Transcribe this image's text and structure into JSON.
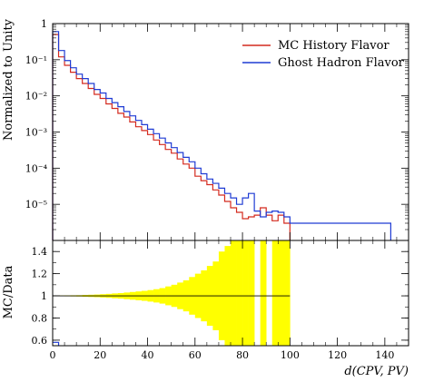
{
  "chart_data": [
    {
      "type": "line",
      "panel": "main",
      "ylabel": "Normalized to Unity",
      "yscale": "log",
      "ylim": [
        1e-06,
        1
      ],
      "xlim": [
        0,
        150
      ],
      "yticks": [
        {
          "value": 1,
          "label": "1"
        },
        {
          "value": 0.1,
          "label": "10⁻¹"
        },
        {
          "value": 0.01,
          "label": "10⁻²"
        },
        {
          "value": 0.001,
          "label": "10⁻³"
        },
        {
          "value": 0.0001,
          "label": "10⁻⁴"
        },
        {
          "value": 1e-05,
          "label": "10⁻⁵"
        }
      ],
      "legend_position": "top-right",
      "bin_width": 2.5,
      "series": [
        {
          "name": "MC History Flavor",
          "color": "#d42a1f",
          "bin_starts": [
            0,
            2.5,
            5,
            7.5,
            10,
            12.5,
            15,
            17.5,
            20,
            22.5,
            25,
            27.5,
            30,
            32.5,
            35,
            37.5,
            40,
            42.5,
            45,
            47.5,
            50,
            52.5,
            55,
            57.5,
            60,
            62.5,
            65,
            67.5,
            70,
            72.5,
            75,
            77.5,
            80,
            82.5,
            85,
            87.5,
            90,
            92.5,
            95,
            97.5
          ],
          "values": [
            0.5,
            0.12,
            0.07,
            0.045,
            0.03,
            0.022,
            0.016,
            0.011,
            0.0085,
            0.006,
            0.0045,
            0.0033,
            0.0026,
            0.0019,
            0.0014,
            0.0011,
            0.00085,
            0.0006,
            0.00045,
            0.00033,
            0.00026,
            0.00018,
            0.00013,
            0.0001,
            6e-05,
            4.5e-05,
            3.5e-05,
            2.5e-05,
            1.8e-05,
            1.2e-05,
            8e-06,
            6e-06,
            4e-06,
            4.5e-06,
            5e-06,
            8e-06,
            5e-06,
            3.5e-06,
            5e-06,
            3e-06
          ]
        },
        {
          "name": "Ghost Hadron Flavor",
          "color": "#1f3bd4",
          "bin_starts": [
            0,
            2.5,
            5,
            7.5,
            10,
            12.5,
            15,
            17.5,
            20,
            22.5,
            25,
            27.5,
            30,
            32.5,
            35,
            37.5,
            40,
            42.5,
            45,
            47.5,
            50,
            52.5,
            55,
            57.5,
            60,
            62.5,
            65,
            67.5,
            70,
            72.5,
            75,
            77.5,
            80,
            82.5,
            85,
            87.5,
            90,
            92.5,
            95,
            97.5,
            100,
            102.5,
            105,
            107.5,
            110,
            112.5,
            115,
            117.5,
            120,
            122.5,
            125,
            127.5,
            130,
            132.5,
            135,
            137.5,
            140
          ],
          "values": [
            0.6,
            0.18,
            0.095,
            0.06,
            0.04,
            0.03,
            0.022,
            0.015,
            0.012,
            0.0085,
            0.0065,
            0.005,
            0.0037,
            0.0028,
            0.0021,
            0.0016,
            0.0012,
            0.0009,
            0.00068,
            0.0005,
            0.00037,
            0.00027,
            0.0002,
            0.00015,
            0.0001,
            7e-05,
            5e-05,
            3.8e-05,
            2.8e-05,
            2e-05,
            1.5e-05,
            1e-05,
            1.5e-05,
            2e-05,
            6.5e-06,
            4.5e-06,
            6e-06,
            6.5e-06,
            6e-06,
            4.5e-06,
            3e-06,
            3e-06,
            3e-06,
            3e-06,
            3e-06,
            3e-06,
            3e-06,
            3e-06,
            3e-06,
            3e-06,
            3e-06,
            3e-06,
            3e-06,
            3e-06,
            3e-06,
            3e-06,
            3e-06
          ]
        }
      ]
    },
    {
      "type": "bar",
      "panel": "ratio",
      "ylabel": "MC/Data",
      "xlabel": "d(CPV, PV)",
      "ylim": [
        0.55,
        1.5
      ],
      "xlim": [
        0,
        150
      ],
      "yticks": [
        {
          "value": 0.6,
          "label": "0.6"
        },
        {
          "value": 0.8,
          "label": "0.8"
        },
        {
          "value": 1,
          "label": "1"
        },
        {
          "value": 1.2,
          "label": "1.2"
        },
        {
          "value": 1.4,
          "label": "1.4"
        }
      ],
      "xticks": [
        {
          "value": 0,
          "label": "0"
        },
        {
          "value": 20,
          "label": "20"
        },
        {
          "value": 40,
          "label": "40"
        },
        {
          "value": 60,
          "label": "60"
        },
        {
          "value": 80,
          "label": "80"
        },
        {
          "value": 100,
          "label": "100"
        },
        {
          "value": 120,
          "label": "120"
        },
        {
          "value": 140,
          "label": "140"
        }
      ],
      "reference_line": 1,
      "band_color": "#ffff00",
      "bin_width": 2.5,
      "bin_starts": [
        0,
        2.5,
        5,
        7.5,
        10,
        12.5,
        15,
        17.5,
        20,
        22.5,
        25,
        27.5,
        30,
        32.5,
        35,
        37.5,
        40,
        42.5,
        45,
        47.5,
        50,
        52.5,
        55,
        57.5,
        60,
        62.5,
        65,
        67.5,
        70,
        72.5,
        75,
        77.5,
        80,
        82.5,
        85,
        87.5,
        90,
        92.5,
        95,
        97.5
      ],
      "band_lower": [
        0.998,
        0.997,
        0.996,
        0.995,
        0.994,
        0.992,
        0.99,
        0.988,
        0.985,
        0.982,
        0.978,
        0.975,
        0.97,
        0.965,
        0.96,
        0.955,
        0.948,
        0.94,
        0.93,
        0.915,
        0.9,
        0.88,
        0.86,
        0.83,
        0.8,
        0.77,
        0.73,
        0.69,
        0.6,
        0.55,
        0.55,
        0.55,
        0.55,
        0.55,
        0.55,
        0.55,
        0.55,
        0.55,
        0.55,
        0.55
      ],
      "band_upper": [
        1.002,
        1.003,
        1.004,
        1.005,
        1.006,
        1.008,
        1.01,
        1.012,
        1.015,
        1.018,
        1.022,
        1.025,
        1.03,
        1.035,
        1.04,
        1.045,
        1.052,
        1.06,
        1.07,
        1.085,
        1.1,
        1.12,
        1.14,
        1.17,
        1.2,
        1.23,
        1.27,
        1.31,
        1.4,
        1.45,
        1.5,
        1.5,
        1.5,
        1.5,
        1.5,
        1.5,
        1.5,
        1.5,
        1.5,
        1.5
      ],
      "band_gaps": [
        85,
        90
      ],
      "ratio_markers": [
        {
          "x_start": 0,
          "x_end": 2.5,
          "value": 0.58
        }
      ]
    }
  ]
}
